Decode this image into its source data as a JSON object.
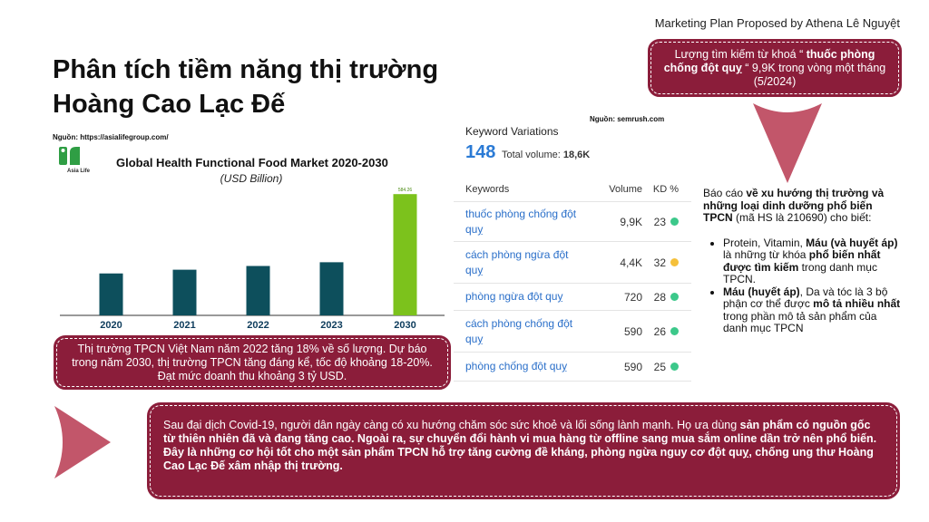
{
  "header": {
    "note": "Marketing Plan Proposed by Athena Lê Nguyệt"
  },
  "title": {
    "line1": "Phân tích tiềm năng thị trường",
    "line2": "Hoàng Cao Lạc Đế"
  },
  "source_left": "Nguồn: https://asialifegroup.com/",
  "logo": {
    "text": "Asia Life"
  },
  "chart_data": {
    "type": "bar",
    "title": "Global Health Functional Food Market 2020-2030",
    "subtitle": "(USD Billion)",
    "categories": [
      "2020",
      "2021",
      "2022",
      "2023",
      "2030"
    ],
    "values": [
      202,
      220,
      238,
      256,
      584.26
    ],
    "value_labels": [
      "",
      "",
      "",
      "",
      "584.26"
    ],
    "ylim": [
      0,
      620
    ],
    "colors": [
      "#0d4f5c",
      "#0d4f5c",
      "#0d4f5c",
      "#0d4f5c",
      "#7cc21c"
    ]
  },
  "note_box": {
    "part1": "Lượng tìm kiếm từ khoá “ ",
    "bold": "thuốc phòng chống đột quỵ",
    "part2": " “ 9,9K trong vòng một tháng (5/2024)"
  },
  "keyword_panel": {
    "source": "Nguồn: semrush.com",
    "title": "Keyword Variations",
    "count": "148",
    "total_label": "Total volume:",
    "total_value": "18,6K",
    "headers": {
      "keywords": "Keywords",
      "volume": "Volume",
      "kd": "KD %"
    },
    "rows": [
      {
        "keyword": "thuốc phòng chống đột quỵ",
        "volume": "9,9K",
        "kd": "23",
        "color": "#3cc88a"
      },
      {
        "keyword": "cách phòng ngừa đột quỵ",
        "volume": "4,4K",
        "kd": "32",
        "color": "#f5c03a"
      },
      {
        "keyword": "phòng ngừa đột quỵ",
        "volume": "720",
        "kd": "28",
        "color": "#3cc88a"
      },
      {
        "keyword": "cách phòng chống đột quỵ",
        "volume": "590",
        "kd": "26",
        "color": "#3cc88a"
      },
      {
        "keyword": "phòng chống đột quỵ",
        "volume": "590",
        "kd": "25",
        "color": "#3cc88a"
      }
    ]
  },
  "report": {
    "intro1": "Báo cáo ",
    "intro_bold": "về xu hướng thị trường và những loại dinh dưỡng phổ biến TPCN",
    "intro2": " (mã HS là 210690) cho biết:",
    "b1_part1": " Protein, Vitamin, ",
    "b1_bold1": "Máu (và huyết áp)",
    "b1_part2": " là những từ khóa ",
    "b1_bold2": "phổ biến nhất được tìm kiếm",
    "b1_part3": " trong danh mục TPCN.",
    "b2_bold1": "Máu (huyết áp)",
    "b2_part1": ", Da và tóc là 3 bộ phận cơ thể được ",
    "b2_bold2": "mô tả nhiều nhất",
    "b2_part2": " trong phần mô tả sản phẩm của danh mục TPCN"
  },
  "market_box": "Thị trường TPCN Việt Nam năm 2022 tăng 18% về số lượng. Dự báo trong năm 2030, thị trường TPCN tăng đáng kể, tốc độ khoảng 18-20%. Đạt mức doanh thu khoảng 3 tỷ USD.",
  "bottom_box": {
    "part1": "Sau đại dịch Covid-19, người dân ngày càng có xu hướng chăm sóc sức khoẻ và lối sống lành mạnh. Họ ưa dùng ",
    "bold": "sản phẩm có nguồn gốc từ thiên nhiên đã và đang tăng cao. Ngoài ra, sự chuyển đổi hành vi mua hàng từ offline sang mua sắm online dần trở nên phổ biến. Đây là những cơ hội tốt cho một sản phẩm TPCN hỗ trợ tăng cường đề kháng, phòng ngừa nguy cơ đột quỵ, chống ung thư Hoàng Cao Lạc Đế xâm nhập thị trường."
  },
  "colors": {
    "accent": "#8b1d3a",
    "arrow": "#c2566a"
  }
}
